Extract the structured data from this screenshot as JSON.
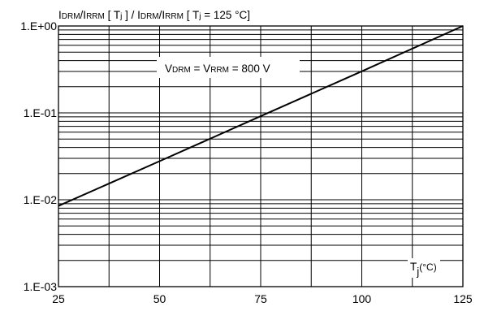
{
  "chart_data": {
    "type": "line",
    "title": {
      "parts": [
        {
          "text": "I",
          "sub": "DRM"
        },
        {
          "text": "/I",
          "sub": "RRM"
        },
        {
          "text": " [ T",
          "sub": "j"
        },
        {
          "text": " ] / I",
          "sub": "DRM"
        },
        {
          "text": "/I",
          "sub": "RRM"
        },
        {
          "text": "  [ T",
          "sub": "j"
        },
        {
          "text": " = 125 °C]",
          "sub": ""
        }
      ]
    },
    "annotation": {
      "parts": [
        {
          "text": "V",
          "sub": "DRM"
        },
        {
          "text": " = V",
          "sub": "RRM"
        },
        {
          "text": " = 800 V",
          "sub": ""
        }
      ]
    },
    "xlabel": {
      "text": "T",
      "sub": "j",
      "suffix": "(°C)"
    },
    "xlim": [
      25,
      125
    ],
    "ylim": [
      0.001,
      1
    ],
    "yscale": "log",
    "xticks": [
      {
        "value": 25,
        "label": "25"
      },
      {
        "value": 50,
        "label": "50"
      },
      {
        "value": 75,
        "label": "75"
      },
      {
        "value": 100,
        "label": "100"
      },
      {
        "value": 125,
        "label": "125"
      }
    ],
    "yticks": [
      {
        "value": 1,
        "label": "1.E+00"
      },
      {
        "value": 0.1,
        "label": "1.E-01"
      },
      {
        "value": 0.01,
        "label": "1.E-02"
      },
      {
        "value": 0.001,
        "label": "1.E-03"
      }
    ],
    "grid": true,
    "series": [
      {
        "x": [
          25,
          50,
          75,
          100,
          125
        ],
        "y": [
          0.0085,
          0.0278,
          0.0915,
          0.301,
          1.0
        ]
      }
    ]
  }
}
